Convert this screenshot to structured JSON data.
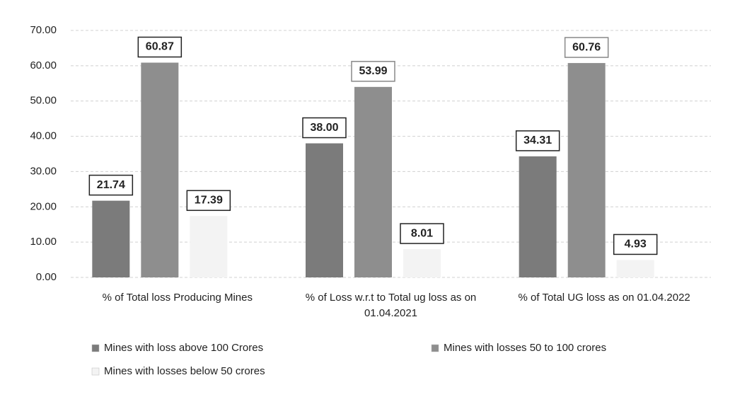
{
  "chart_data": {
    "type": "bar",
    "categories": [
      "% of Total loss  Producing Mines",
      "% of Loss w.r.t to Total ug loss as on 01.04.2021",
      "% of Total UG loss as on 01.04.2022"
    ],
    "series": [
      {
        "name": "Mines with loss above 100 Crores",
        "color": "#7b7b7b",
        "values": [
          21.74,
          38.0,
          34.31
        ],
        "value_labels": [
          "21.74",
          "38.00",
          "34.31"
        ]
      },
      {
        "name": "Mines with losses 50 to 100 crores",
        "color": "#8e8e8e",
        "values": [
          60.87,
          53.99,
          60.76
        ],
        "value_labels": [
          "60.87",
          "53.99",
          "60.76"
        ]
      },
      {
        "name": "Mines with losses below 50 crores",
        "color": "#f3f3f3",
        "values": [
          17.39,
          8.01,
          4.93
        ],
        "value_labels": [
          "17.39",
          "8.01",
          "4.93"
        ]
      }
    ],
    "ylim": [
      0,
      70
    ],
    "yticks": [
      {
        "value": 0,
        "label": "0.00"
      },
      {
        "value": 10,
        "label": "10.00"
      },
      {
        "value": 20,
        "label": "20.00"
      },
      {
        "value": 30,
        "label": "30.00"
      },
      {
        "value": 40,
        "label": "40.00"
      },
      {
        "value": 50,
        "label": "50.00"
      },
      {
        "value": 60,
        "label": "60.00"
      },
      {
        "value": 70,
        "label": "70.00"
      }
    ],
    "grid": true
  }
}
